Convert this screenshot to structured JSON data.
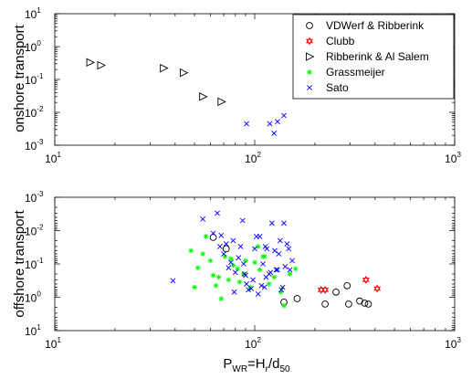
{
  "chart_data": [
    {
      "type": "scatter",
      "ylabel": "onshore transport",
      "xscale": "log",
      "yscale": "log",
      "xlim": [
        10,
        1000
      ],
      "ylim": [
        0.001,
        10
      ],
      "legend_position": "top-right",
      "series": [
        {
          "name": "VDWerf & Ribberink",
          "marker": "circle",
          "color": "#000000",
          "points": []
        },
        {
          "name": "Clubb",
          "marker": "hexagram",
          "color": "#ff0000",
          "points": []
        },
        {
          "name": "Ribberink & Al Salem",
          "marker": "triangle-right",
          "color": "#000000",
          "points": [
            [
              15,
              0.33
            ],
            [
              17,
              0.27
            ],
            [
              35,
              0.22
            ],
            [
              44,
              0.16
            ],
            [
              55,
              0.03
            ],
            [
              68,
              0.021
            ]
          ]
        },
        {
          "name": "Grassmeijer",
          "marker": "asterisk",
          "color": "#00ff00",
          "points": []
        },
        {
          "name": "Sato",
          "marker": "x",
          "color": "#0000ff",
          "points": [
            [
              91,
              0.0045
            ],
            [
              119,
              0.0045
            ],
            [
              125,
              0.0023
            ],
            [
              130,
              0.0052
            ],
            [
              140,
              0.008
            ]
          ]
        }
      ]
    },
    {
      "type": "scatter",
      "ylabel": "offshore transport",
      "xscale": "log",
      "yscale": "log",
      "yreversed": true,
      "xlim": [
        10,
        1000
      ],
      "ylim": [
        0.001,
        10
      ],
      "series": [
        {
          "name": "VDWerf & Ribberink",
          "marker": "circle",
          "color": "#000000",
          "points": [
            [
              62,
              0.016
            ],
            [
              72,
              0.035
            ],
            [
              140,
              1.4
            ],
            [
              163,
              1.1
            ],
            [
              225,
              1.6
            ],
            [
              255,
              0.7
            ],
            [
              290,
              0.45
            ],
            [
              295,
              1.6
            ],
            [
              335,
              1.3
            ],
            [
              355,
              1.5
            ],
            [
              370,
              1.6
            ]
          ]
        },
        {
          "name": "Clubb",
          "marker": "hexagram",
          "color": "#ff0000",
          "points": [
            [
              215,
              0.6
            ],
            [
              225,
              0.6
            ],
            [
              360,
              0.3
            ],
            [
              410,
              0.55
            ]
          ]
        },
        {
          "name": "Ribberink & Al Salem",
          "marker": "triangle-right",
          "color": "#000000",
          "points": []
        },
        {
          "name": "Grassmeijer",
          "marker": "asterisk",
          "color": "#00ff00",
          "points": [
            [
              48,
              0.04
            ],
            [
              50,
              0.5
            ],
            [
              52,
              0.13
            ],
            [
              55,
              0.05
            ],
            [
              57,
              0.015
            ],
            [
              60,
              0.08
            ],
            [
              62,
              0.22
            ],
            [
              64,
              0.45
            ],
            [
              66,
              0.25
            ],
            [
              68,
              1.1
            ],
            [
              71,
              0.06
            ],
            [
              74,
              0.3
            ],
            [
              76,
              0.07
            ],
            [
              78,
              0.11
            ],
            [
              82,
              0.14
            ],
            [
              84,
              0.35
            ],
            [
              88,
              0.2
            ],
            [
              90,
              0.08
            ],
            [
              95,
              0.5
            ],
            [
              100,
              0.09
            ],
            [
              104,
              0.03
            ],
            [
              106,
              0.15
            ],
            [
              110,
              0.06
            ],
            [
              112,
              0.06
            ],
            [
              118,
              0.4
            ],
            [
              125,
              0.25
            ],
            [
              135,
              0.7
            ],
            [
              140,
              1.8
            ],
            [
              150,
              0.2
            ],
            [
              160,
              0.14
            ]
          ]
        },
        {
          "name": "Sato",
          "marker": "x",
          "color": "#0000ff",
          "points": [
            [
              39,
              0.32
            ],
            [
              55,
              0.0045
            ],
            [
              62,
              0.012
            ],
            [
              65,
              0.003
            ],
            [
              67,
              0.03
            ],
            [
              68,
              0.014
            ],
            [
              70,
              0.05
            ],
            [
              72,
              0.025
            ],
            [
              74,
              0.13
            ],
            [
              76,
              0.09
            ],
            [
              78,
              0.02
            ],
            [
              79,
              0.7
            ],
            [
              80,
              0.18
            ],
            [
              83,
              0.065
            ],
            [
              85,
              0.03
            ],
            [
              87,
              0.005
            ],
            [
              88,
              0.1
            ],
            [
              89,
              0.2
            ],
            [
              90,
              0.22
            ],
            [
              91,
              0.4
            ],
            [
              93,
              0.6
            ],
            [
              96,
              0.55
            ],
            [
              98,
              0.3
            ],
            [
              100,
              0.035
            ],
            [
              102,
              0.015
            ],
            [
              104,
              0.8
            ],
            [
              106,
              0.015
            ],
            [
              108,
              0.45
            ],
            [
              110,
              0.1
            ],
            [
              112,
              0.5
            ],
            [
              113,
              0.03
            ],
            [
              114,
              0.25
            ],
            [
              115,
              0.035
            ],
            [
              118,
              0.2
            ],
            [
              120,
              0.18
            ],
            [
              122,
              0.006
            ],
            [
              126,
              0.04
            ],
            [
              128,
              0.15
            ],
            [
              130,
              0.15
            ],
            [
              132,
              0.05
            ],
            [
              134,
              0.02
            ],
            [
              136,
              0.6
            ],
            [
              138,
              0.5
            ],
            [
              140,
              0.006
            ],
            [
              142,
              0.12
            ],
            [
              145,
              0.025
            ],
            [
              148,
              0.035
            ],
            [
              150,
              0.15
            ],
            [
              154,
              0.08
            ]
          ]
        }
      ]
    }
  ],
  "x_axis_label": {
    "main": "P",
    "main_sub": "WR",
    "eq": "=H",
    "eq_sub": "r",
    "slash": "/d",
    "slash_sub": "50"
  },
  "x_tick_labels": [
    {
      "base": "10",
      "exp": "1"
    },
    {
      "base": "10",
      "exp": "2"
    },
    {
      "base": "10",
      "exp": "3"
    }
  ],
  "top_y_tick_labels": [
    {
      "base": "10",
      "exp": "-3"
    },
    {
      "base": "10",
      "exp": "-2"
    },
    {
      "base": "10",
      "exp": "-1"
    },
    {
      "base": "10",
      "exp": "0"
    },
    {
      "base": "10",
      "exp": "1"
    }
  ],
  "bottom_y_tick_labels": [
    {
      "base": "10",
      "exp": "-3"
    },
    {
      "base": "10",
      "exp": "-2"
    },
    {
      "base": "10",
      "exp": "-1"
    },
    {
      "base": "10",
      "exp": "0"
    },
    {
      "base": "10",
      "exp": "1"
    }
  ]
}
